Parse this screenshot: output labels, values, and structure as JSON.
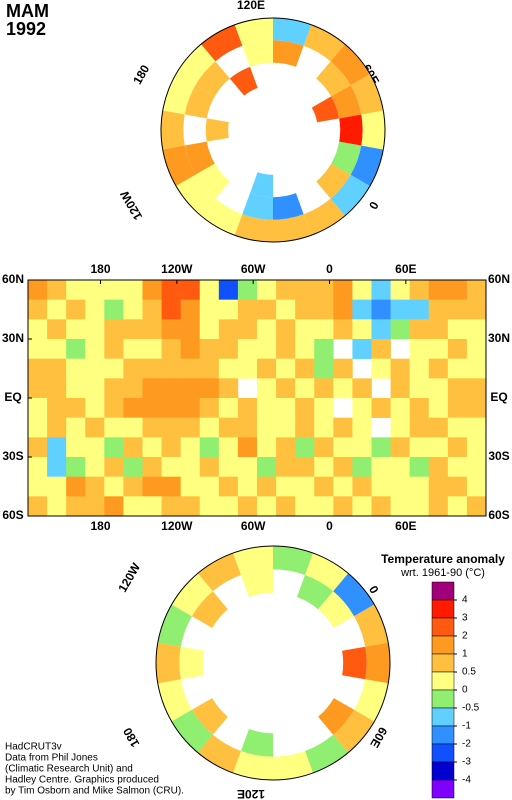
{
  "header": {
    "season": "MAM",
    "year": "1992"
  },
  "north_polar": {
    "labels": [
      "120E",
      "60E",
      "0",
      "120W",
      "180"
    ],
    "rings": [
      [
        0.3,
        0.7,
        1.2,
        0.4,
        0.2,
        0.5,
        0.8,
        0.6,
        -0.6,
        -1.5,
        0.3,
        0.6,
        1.2,
        0.5,
        -0.6,
        0.3,
        2,
        0.4
      ],
      [
        0.6,
        null,
        1.2,
        0.3,
        null,
        -0.7,
        -2,
        null,
        0.6,
        -0.5,
        3,
        1.1,
        0.7,
        null,
        1.2,
        0.4,
        null,
        0.6
      ],
      [
        null,
        0.6,
        null,
        null,
        null,
        -0.8,
        null,
        null,
        null,
        null,
        null,
        2,
        null,
        null,
        null,
        null,
        2,
        null
      ]
    ]
  },
  "main_map": {
    "xticks": [
      {
        "value": 180,
        "label": "180"
      },
      {
        "value": 240,
        "label": "120W"
      },
      {
        "value": 300,
        "label": "60W"
      },
      {
        "value": 360,
        "label": "0"
      },
      {
        "value": 420,
        "label": "60E"
      }
    ],
    "yticks": [
      {
        "value": 60,
        "label": "60N"
      },
      {
        "value": 30,
        "label": "30N"
      },
      {
        "value": 0,
        "label": "EQ"
      },
      {
        "value": -30,
        "label": "30S"
      },
      {
        "value": -60,
        "label": "60S"
      }
    ],
    "xlim": [
      123,
      483
    ],
    "ylim": [
      -60,
      60
    ],
    "grid": [
      [
        1,
        0.5,
        0.3,
        0.3,
        0.3,
        0.2,
        1,
        2,
        2,
        0.3,
        -3,
        -0.3,
        0.4,
        0.7,
        0.6,
        0.8,
        1.2,
        0.3,
        -0.7,
        0.3,
        0.6,
        1.2,
        1.5,
        0.8
      ],
      [
        0.6,
        0.3,
        0.8,
        0.3,
        -0.2,
        0.4,
        0.8,
        2,
        1.2,
        0.2,
        0.4,
        0.6,
        0.7,
        0.3,
        0.5,
        0.7,
        1.5,
        -0.7,
        -1.2,
        -0.8,
        -0.6,
        0.7,
        0.9,
        0.6
      ],
      [
        0.3,
        0.7,
        0.4,
        0.2,
        0.5,
        0.7,
        0.5,
        1.2,
        1.1,
        0.3,
        0.7,
        0.6,
        0.2,
        0.6,
        0.4,
        0.3,
        0.8,
        0.2,
        -0.7,
        -0.4,
        0.5,
        0.6,
        0.3,
        0.4
      ],
      [
        0.4,
        0.2,
        -0.3,
        0.4,
        0.6,
        0.3,
        0.2,
        0.6,
        1.1,
        0.8,
        0.6,
        0.4,
        0.3,
        0.5,
        0.2,
        -0.3,
        null,
        -0.6,
        0.5,
        null,
        0.3,
        0.4,
        0.6,
        0.3
      ],
      [
        0.5,
        0.8,
        0.4,
        0.3,
        0.2,
        0.6,
        0.5,
        0.8,
        0.7,
        0.6,
        0.4,
        0.3,
        0.6,
        0.3,
        0.5,
        -0.2,
        0.7,
        null,
        0.4,
        0.6,
        0.3,
        0.5,
        0.3,
        0.2
      ],
      [
        0.6,
        0.7,
        0.3,
        0.4,
        0.8,
        0.6,
        1.2,
        1.3,
        1.4,
        1.2,
        0.6,
        null,
        0.4,
        0.6,
        0.3,
        0.5,
        0.3,
        0.6,
        null,
        0.6,
        0.2,
        0.4,
        0.6,
        0.5
      ],
      [
        0.4,
        0.5,
        0.7,
        0.3,
        0.6,
        1.1,
        1.2,
        1.3,
        1.2,
        0.9,
        0.4,
        0.6,
        0.2,
        0.4,
        0.7,
        0.3,
        null,
        0.2,
        0.5,
        0.4,
        0.6,
        0.3,
        0.5,
        0.6
      ],
      [
        0.3,
        0.6,
        0.2,
        0.5,
        0.3,
        0.4,
        0.6,
        0.7,
        0.5,
        0.3,
        0.6,
        0.5,
        0.3,
        0.2,
        0.5,
        0.4,
        0.6,
        0.3,
        null,
        0.3,
        0.5,
        0.7,
        0.2,
        0.4
      ],
      [
        0.5,
        -0.6,
        0.3,
        0.4,
        -0.3,
        0.5,
        0.3,
        0.6,
        0.2,
        -0.4,
        0.3,
        1.2,
        0.4,
        0.6,
        -0.2,
        0.5,
        0.2,
        0.4,
        -0.5,
        0.6,
        0.3,
        0.2,
        0.5,
        0.3
      ],
      [
        0.2,
        -0.8,
        -0.4,
        0.3,
        0.5,
        -0.3,
        0.6,
        0.4,
        0.3,
        0.5,
        0.2,
        0.4,
        -0.3,
        0.5,
        0.6,
        0.3,
        0.5,
        -0.2,
        0.3,
        0.4,
        -0.3,
        0.5,
        0.2,
        0.4
      ],
      [
        0.3,
        0.4,
        1.1,
        0.6,
        0.2,
        0.5,
        1.2,
        1.0,
        0.4,
        0.3,
        0.5,
        0.3,
        0.6,
        0.4,
        0.2,
        0.5,
        0.3,
        0.6,
        0.4,
        0.2,
        0.3,
        0.5,
        0.6,
        0.3
      ],
      [
        0.6,
        0.3,
        0.5,
        0.8,
        1.2,
        0.4,
        0.3,
        0.6,
        0.5,
        0.2,
        0.4,
        0.6,
        0.3,
        0.5,
        0.4,
        0.3,
        0.6,
        0.2,
        0.5,
        0.3,
        0.4,
        0.6,
        0.3,
        0.5
      ]
    ]
  },
  "south_polar": {
    "labels": [
      "120W",
      "0",
      "60E",
      "120E",
      "180"
    ],
    "rings": [
      [
        0.2,
        0.5,
        -0.4,
        0.3,
        0.6,
        0.2,
        -0.3,
        0.4,
        -1.5,
        0.6,
        1.1,
        0.2,
        0.5,
        -0.4,
        0.4,
        0.3,
        0.6,
        -0.3
      ],
      [
        null,
        0.4,
        null,
        0.6,
        null,
        0.3,
        null,
        -0.4,
        0.3,
        null,
        2,
        null,
        1.1,
        null,
        null,
        -0.4,
        null,
        0.5
      ]
    ]
  },
  "legend": {
    "title": "Temperature anomaly",
    "subtitle": "wrt. 1961-90  (°C)",
    "ticks": [
      4,
      3,
      2,
      1,
      0.5,
      0,
      -0.5,
      -1,
      -2,
      -3,
      -4
    ],
    "colors": [
      "#a0007a",
      "#ff1a00",
      "#ff5a10",
      "#ff9a20",
      "#ffc040",
      "#ffff80",
      "#90ee70",
      "#60d0ff",
      "#3090ff",
      "#1050ff",
      "#0000d0",
      "#8000ff"
    ]
  },
  "credits": [
    "HadCRUT3v",
    "Data from Phil Jones",
    "(Climatic Research Unit) and",
    "Hadley Centre.  Graphics produced",
    "by Tim Osborn and Mike Salmon (CRU)."
  ]
}
